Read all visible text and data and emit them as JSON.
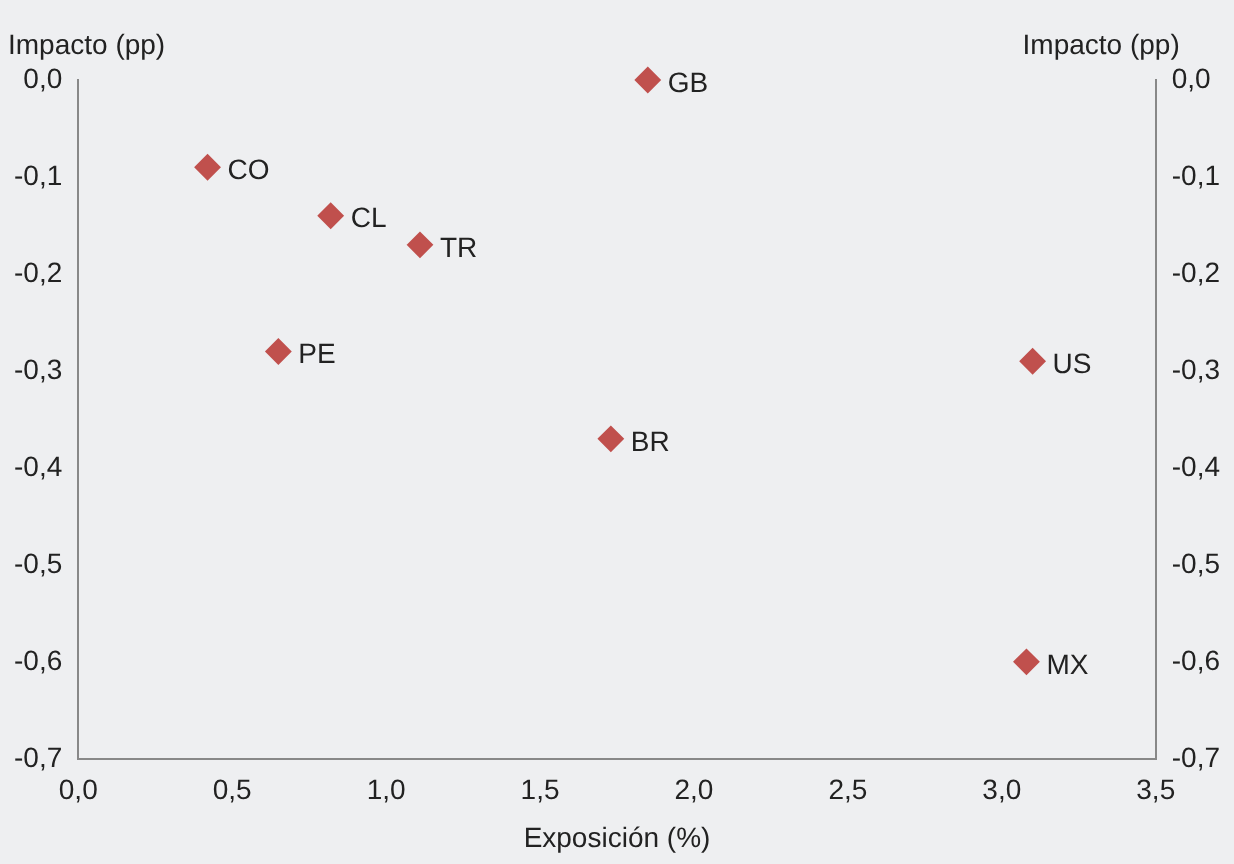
{
  "chart_data": {
    "type": "scatter",
    "xlabel": "Exposición (%)",
    "ylabel": "Impacto (pp)",
    "y2label": "Impacto (pp)",
    "series": [
      {
        "color": "#c0504d",
        "x": [
          1.85,
          0.42,
          0.82,
          1.11,
          0.65,
          1.73,
          3.1,
          3.08
        ],
        "values": [
          0.0,
          -0.09,
          -0.14,
          -0.17,
          -0.28,
          -0.37,
          -0.29,
          -0.6
        ]
      }
    ],
    "marker": "diamond",
    "grid": false,
    "legend": false,
    "xlim": [
      0,
      3.5
    ],
    "xticks": [
      {
        "value": 0,
        "label": "0,0"
      },
      {
        "value": 0.5,
        "label": "0,5"
      },
      {
        "value": 1,
        "label": "1,0"
      },
      {
        "value": 1.5,
        "label": "1,5"
      },
      {
        "value": 2,
        "label": "2,0"
      },
      {
        "value": 2.5,
        "label": "2,5"
      },
      {
        "value": 3,
        "label": "3,0"
      },
      {
        "value": 3.5,
        "label": "3,5"
      }
    ],
    "ylim": [
      -0.7,
      0
    ],
    "yticks": [
      {
        "value": 0,
        "label": "0,0"
      },
      {
        "value": -0.1,
        "label": "-0,1"
      },
      {
        "value": -0.2,
        "label": "-0,2"
      },
      {
        "value": -0.3,
        "label": "-0,3"
      },
      {
        "value": -0.4,
        "label": "-0,4"
      },
      {
        "value": -0.5,
        "label": "-0,5"
      },
      {
        "value": -0.6,
        "label": "-0,6"
      },
      {
        "value": -0.7,
        "label": "-0,7"
      }
    ],
    "y2lim": [
      -0.7,
      0
    ],
    "y2ticks": [
      {
        "value": 0,
        "label": "0,0"
      },
      {
        "value": -0.1,
        "label": "-0,1"
      },
      {
        "value": -0.2,
        "label": "-0,2"
      },
      {
        "value": -0.3,
        "label": "-0,3"
      },
      {
        "value": -0.4,
        "label": "-0,4"
      },
      {
        "value": -0.5,
        "label": "-0,5"
      },
      {
        "value": -0.6,
        "label": "-0,6"
      },
      {
        "value": -0.7,
        "label": "-0,7"
      }
    ],
    "annotations": [
      {
        "text": "GB",
        "x": 1.85,
        "y": 0.0
      },
      {
        "text": "CO",
        "x": 0.42,
        "y": -0.09
      },
      {
        "text": "CL",
        "x": 0.82,
        "y": -0.14
      },
      {
        "text": "TR",
        "x": 1.11,
        "y": -0.17
      },
      {
        "text": "PE",
        "x": 0.65,
        "y": -0.28
      },
      {
        "text": "BR",
        "x": 1.73,
        "y": -0.37
      },
      {
        "text": "US",
        "x": 3.1,
        "y": -0.29
      },
      {
        "text": "MX",
        "x": 3.08,
        "y": -0.6
      }
    ]
  }
}
